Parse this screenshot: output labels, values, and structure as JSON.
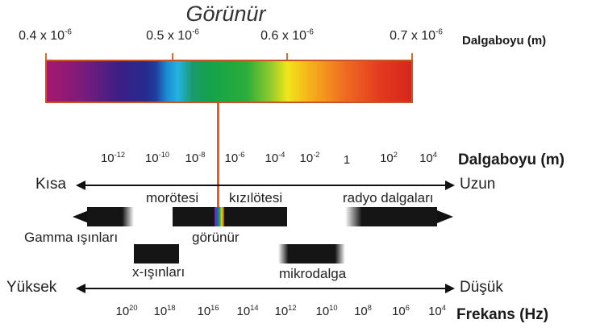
{
  "title": "Görünür",
  "visible": {
    "ticks": [
      {
        "base": "0.4 x 10",
        "exp": "-6"
      },
      {
        "base": "0.5 x 10",
        "exp": "-6"
      },
      {
        "base": "0.6 x 10",
        "exp": "-6"
      },
      {
        "base": "0.7 x 10",
        "exp": "-6"
      }
    ],
    "unit_label": "Dalgaboyu (m)"
  },
  "wavelength_axis": {
    "label": "Dalgaboyu (m)",
    "left": "Kısa",
    "right": "Uzun",
    "ticks": [
      {
        "base": "10",
        "exp": "-12"
      },
      {
        "base": "10",
        "exp": "-10"
      },
      {
        "base": "10",
        "exp": "-8"
      },
      {
        "base": "10",
        "exp": "-6"
      },
      {
        "base": "10",
        "exp": "-4"
      },
      {
        "base": "10",
        "exp": "-2"
      },
      {
        "base": "1",
        "exp": ""
      },
      {
        "base": "10",
        "exp": "2"
      },
      {
        "base": "10",
        "exp": "4"
      }
    ]
  },
  "bands": {
    "gamma": "Gamma ışınları",
    "xray": "x-ışınları",
    "uv": "morötesi",
    "visible": "görünür",
    "ir": "kızılötesi",
    "microwave": "mikrodalga",
    "radio": "radyo dalgaları"
  },
  "frequency_axis": {
    "label": "Frekans (Hz)",
    "left": "Yüksek",
    "right": "Düşük",
    "ticks": [
      {
        "base": "10",
        "exp": "20"
      },
      {
        "base": "10",
        "exp": "18"
      },
      {
        "base": "10",
        "exp": "16"
      },
      {
        "base": "10",
        "exp": "14"
      },
      {
        "base": "10",
        "exp": "12"
      },
      {
        "base": "10",
        "exp": "10"
      },
      {
        "base": "10",
        "exp": "8"
      },
      {
        "base": "10",
        "exp": "6"
      },
      {
        "base": "10",
        "exp": "4"
      }
    ]
  },
  "colors": {
    "accent": "#e35f23",
    "band": "#151515"
  }
}
